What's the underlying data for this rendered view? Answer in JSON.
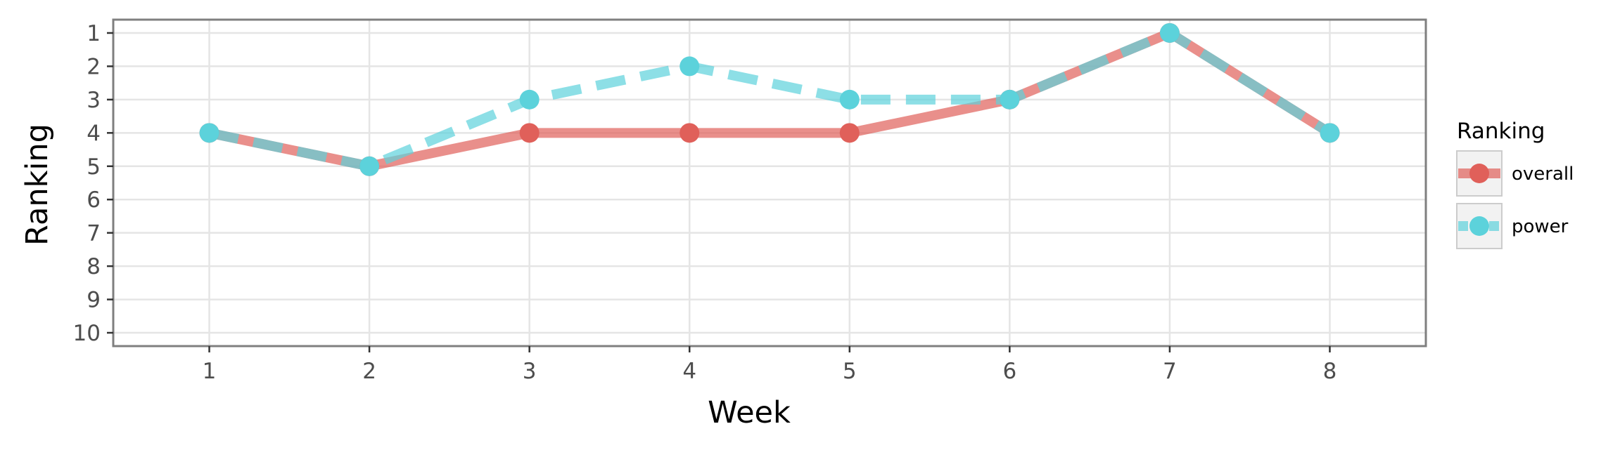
{
  "chart_data": {
    "type": "line",
    "xlabel": "Week",
    "ylabel": "Ranking",
    "x": [
      1,
      2,
      3,
      4,
      5,
      6,
      7,
      8
    ],
    "xlim": [
      0.4,
      8.6
    ],
    "ylim": [
      10.4,
      0.6
    ],
    "y_reversed": true,
    "yticks": [
      1,
      2,
      3,
      4,
      5,
      6,
      7,
      8,
      9,
      10
    ],
    "grid": true,
    "legend": {
      "title": "Ranking",
      "position": "right"
    },
    "series": [
      {
        "name": "overall",
        "values": [
          4,
          5,
          4,
          4,
          4,
          3,
          1,
          4
        ],
        "color": "#e0605a",
        "linestyle": "solid"
      },
      {
        "name": "power",
        "values": [
          4,
          5,
          3,
          2,
          3,
          3,
          1,
          4
        ],
        "color": "#5cd2db",
        "linestyle": "dashed"
      }
    ]
  }
}
